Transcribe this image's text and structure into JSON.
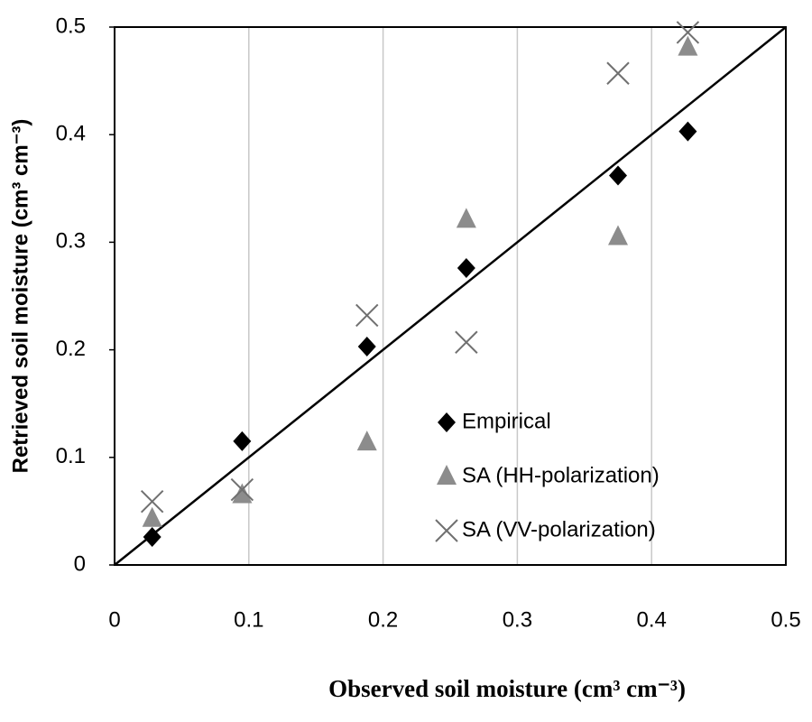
{
  "chart_data": {
    "type": "scatter",
    "x_label": "Observed soil moisture (cm³ cm⁻³)",
    "y_label": "Retrieved soil moisture (cm³ cm⁻³)",
    "xlim": [
      0,
      0.5
    ],
    "ylim": [
      0,
      0.5
    ],
    "xticks": [
      0,
      0.1,
      0.2,
      0.3,
      0.4,
      0.5
    ],
    "yticks": [
      0,
      0.1,
      0.2,
      0.3,
      0.4,
      0.5
    ],
    "grid": "x",
    "diagonal": true,
    "series": [
      {
        "name": "Empirical",
        "color": "#000000",
        "marker": "diamond",
        "x": [
          0.028,
          0.095,
          0.188,
          0.262,
          0.375,
          0.427
        ],
        "values": [
          0.026,
          0.115,
          0.203,
          0.276,
          0.362,
          0.403
        ]
      },
      {
        "name": "SA (HH-polarization)",
        "color": "#8c8c8c",
        "marker": "triangle",
        "x": [
          0.028,
          0.095,
          0.188,
          0.262,
          0.375,
          0.427
        ],
        "values": [
          0.043,
          0.065,
          0.114,
          0.321,
          0.305,
          0.481
        ]
      },
      {
        "name": "SA (VV-polarization)",
        "color": "#707070",
        "marker": "x",
        "x": [
          0.028,
          0.095,
          0.188,
          0.262,
          0.375,
          0.427
        ],
        "values": [
          0.059,
          0.07,
          0.232,
          0.207,
          0.457,
          0.495
        ]
      }
    ]
  }
}
